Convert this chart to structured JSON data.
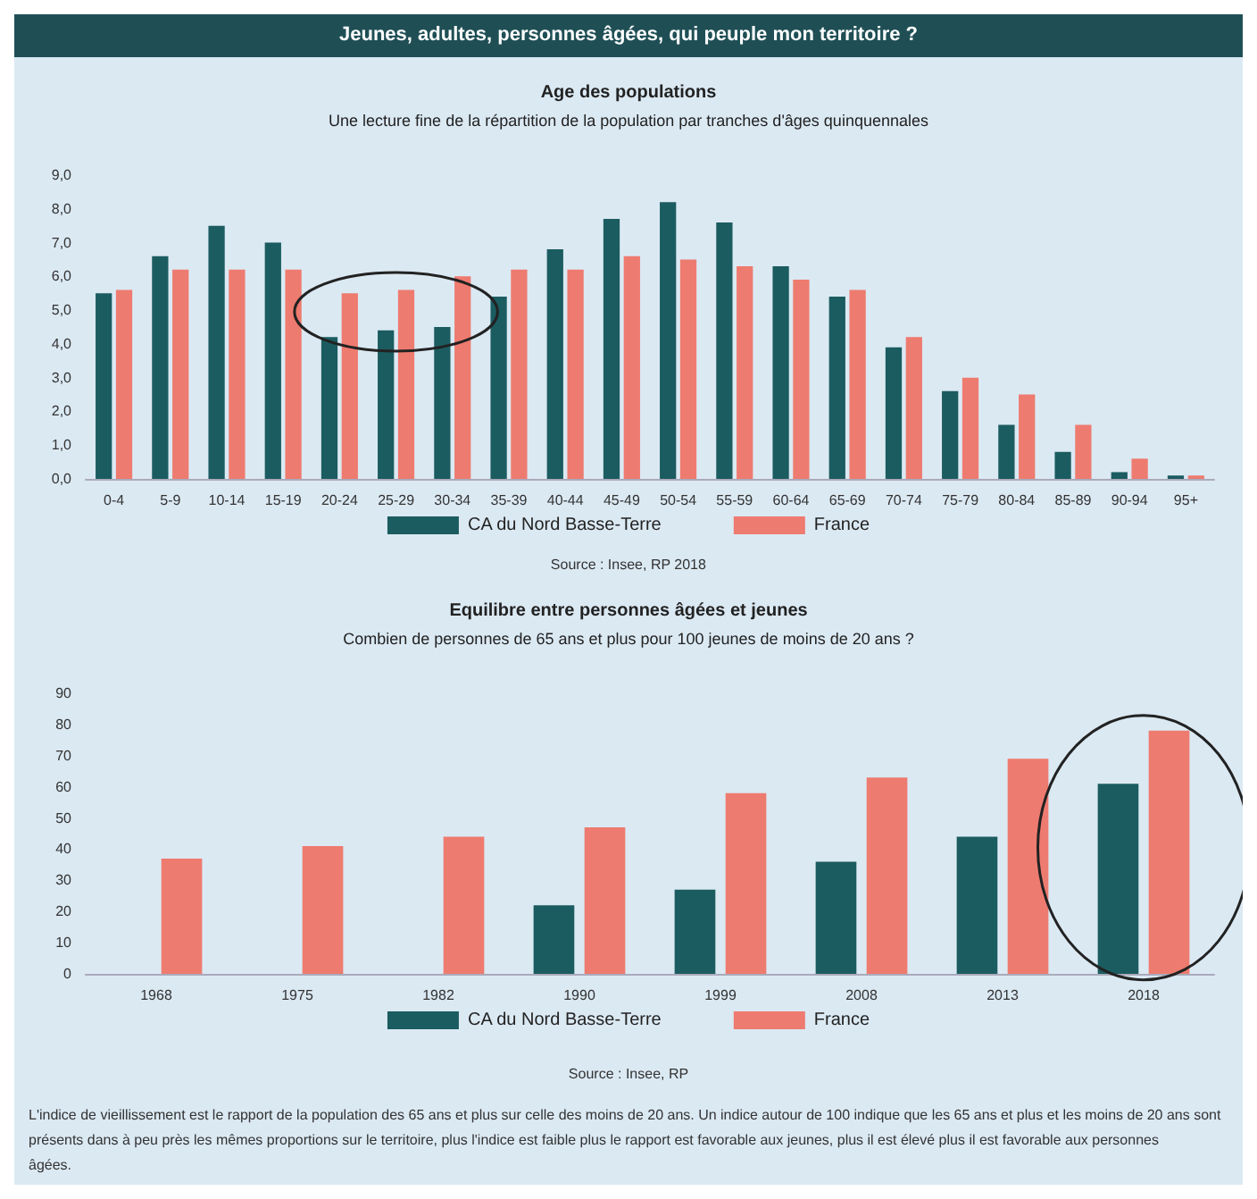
{
  "chart_data": [
    {
      "type": "bar",
      "title": "Age des populations",
      "subtitle": "Une lecture fine de la répartition de la population par tranches d'âges quinquennales",
      "categories": [
        "0-4",
        "5-9",
        "10-14",
        "15-19",
        "20-24",
        "25-29",
        "30-34",
        "35-39",
        "40-44",
        "45-49",
        "50-54",
        "55-59",
        "60-64",
        "65-69",
        "70-74",
        "75-79",
        "80-84",
        "85-89",
        "90-94",
        "95+"
      ],
      "series": [
        {
          "name": "CA du Nord Basse-Terre",
          "color": "#1b5c60",
          "values": [
            5.5,
            6.6,
            7.5,
            7.0,
            4.2,
            4.4,
            4.5,
            5.4,
            6.8,
            7.7,
            8.2,
            7.6,
            6.3,
            5.4,
            3.9,
            2.6,
            1.6,
            0.8,
            0.2,
            0.1
          ]
        },
        {
          "name": "France",
          "color": "#ee7b6f",
          "values": [
            5.6,
            6.2,
            6.2,
            6.2,
            5.5,
            5.6,
            6.0,
            6.2,
            6.2,
            6.6,
            6.5,
            6.3,
            5.9,
            5.6,
            4.2,
            3.0,
            2.5,
            1.6,
            0.6,
            0.1
          ]
        }
      ],
      "ylim": [
        0,
        9
      ],
      "yticks": [
        {
          "value": 0,
          "label": "0,0"
        },
        {
          "value": 1,
          "label": "1,0"
        },
        {
          "value": 2,
          "label": "2,0"
        },
        {
          "value": 3,
          "label": "3,0"
        },
        {
          "value": 4,
          "label": "4,0"
        },
        {
          "value": 5,
          "label": "5,0"
        },
        {
          "value": 6,
          "label": "6,0"
        },
        {
          "value": 7,
          "label": "7,0"
        },
        {
          "value": 8,
          "label": "8,0"
        },
        {
          "value": 9,
          "label": "9,0"
        }
      ],
      "grid": false,
      "legend": "bottom",
      "annotations": [
        "Jeunes, adultes, personnes âgées, qui peuple mon territoire ?",
        "Source : Insee, RP 2018"
      ]
    },
    {
      "type": "bar",
      "title": "Equilibre entre personnes âgées et jeunes",
      "subtitle": "Combien de personnes de 65 ans et plus pour 100 jeunes de moins de 20 ans ?",
      "categories": [
        "1968",
        "1975",
        "1982",
        "1990",
        "1999",
        "2008",
        "2013",
        "2018"
      ],
      "series": [
        {
          "name": "CA du Nord Basse-Terre",
          "color": "#1b5c60",
          "values": [
            null,
            null,
            null,
            22,
            27,
            36,
            44,
            61
          ]
        },
        {
          "name": "France",
          "color": "#ee7b6f",
          "values": [
            37,
            41,
            44,
            47,
            58,
            63,
            69,
            78
          ]
        }
      ],
      "ylim": [
        0,
        90
      ],
      "yticks": [
        0,
        10,
        20,
        30,
        40,
        50,
        60,
        70,
        80,
        90
      ],
      "grid": false,
      "legend": "bottom",
      "annotations": [
        "Source : Insee, RP",
        "L'indice de vieillissement est le rapport de la population des 65 ans et plus sur celle des moins de 20 ans. Un indice autour de 100 indique que les 65 ans et plus et les moins de 20 ans sont présents dans à peu près les mêmes proportions sur le territoire, plus l'indice est faible plus le rapport est favorable aux jeunes, plus il est élevé plus il est favorable aux personnes âgées."
      ]
    }
  ]
}
